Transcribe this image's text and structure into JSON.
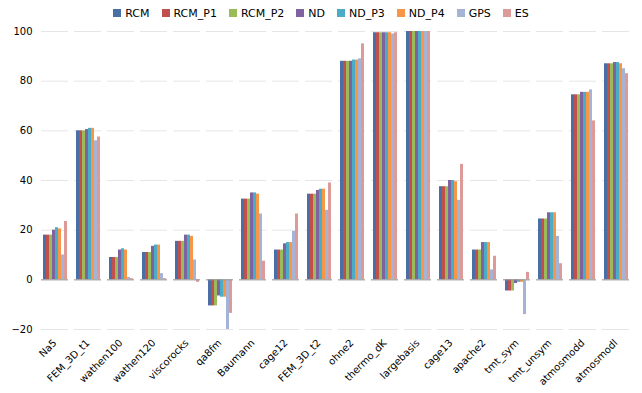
{
  "chart_data": {
    "type": "bar",
    "categories": [
      "Na5",
      "FEM_3D_t1",
      "wathen100",
      "wathen120",
      "viscorocks",
      "qa8fm",
      "Baumann",
      "cage12",
      "FEM_3D_t2",
      "ohne2",
      "thermo_dK",
      "largebasis",
      "cage13",
      "apache2",
      "tmt_sym",
      "tmt_unsym",
      "atmosmodd",
      "atmosmodl"
    ],
    "series": [
      {
        "name": "RCM",
        "color": "#4a6fa5",
        "values": [
          18,
          60,
          9,
          11,
          15.5,
          -10.5,
          32.5,
          12,
          34.5,
          88,
          99.5,
          100,
          37.5,
          12,
          -4.5,
          24.5,
          74.5,
          87
        ]
      },
      {
        "name": "RCM_P1",
        "color": "#c0504d",
        "values": [
          18,
          60,
          9,
          11,
          15.5,
          -10.5,
          32.5,
          12,
          34.5,
          88,
          99.5,
          100,
          37.5,
          12,
          -4.5,
          24.5,
          74.5,
          87
        ]
      },
      {
        "name": "RCM_P2",
        "color": "#9bbb59",
        "values": [
          18,
          60,
          9,
          11,
          15.5,
          -10.5,
          32.5,
          12,
          34.5,
          88,
          99.5,
          100,
          37.5,
          12,
          -4.5,
          24.5,
          74.5,
          87
        ]
      },
      {
        "name": "ND",
        "color": "#7f63a1",
        "values": [
          20,
          60.5,
          12,
          13.5,
          18,
          -6.5,
          35,
          14.5,
          36,
          88,
          99.5,
          100,
          40,
          15,
          -1.5,
          27,
          75.5,
          87.5
        ]
      },
      {
        "name": "ND_P3",
        "color": "#4bacc6",
        "values": [
          21,
          61,
          12.5,
          14,
          18,
          -7,
          35,
          15,
          36.5,
          88.5,
          99.5,
          100,
          40,
          15,
          -1,
          27,
          75.5,
          87.5
        ]
      },
      {
        "name": "ND_P4",
        "color": "#f79646",
        "values": [
          20.5,
          61,
          12,
          14,
          17.5,
          -7,
          34.5,
          15,
          36.5,
          88.5,
          99.5,
          100,
          39.5,
          15,
          -1,
          27,
          75.5,
          87
        ]
      },
      {
        "name": "GPS",
        "color": "#a5b4d6",
        "values": [
          10,
          56,
          1,
          2.5,
          8,
          -20,
          26.5,
          19.5,
          28,
          89,
          99,
          100,
          32,
          4,
          -14,
          17.5,
          76.5,
          85
        ]
      },
      {
        "name": "ES",
        "color": "#dc9a98",
        "values": [
          23.5,
          57.5,
          0.5,
          0.5,
          -1,
          -13.5,
          7.5,
          26.5,
          39,
          95,
          99.5,
          100,
          46.5,
          9.5,
          3,
          6.5,
          64,
          83
        ]
      }
    ],
    "ylim": [
      -20,
      100
    ],
    "yticks": [
      -20,
      0,
      20,
      40,
      60,
      80,
      100
    ],
    "grid": true,
    "legend": "top"
  }
}
